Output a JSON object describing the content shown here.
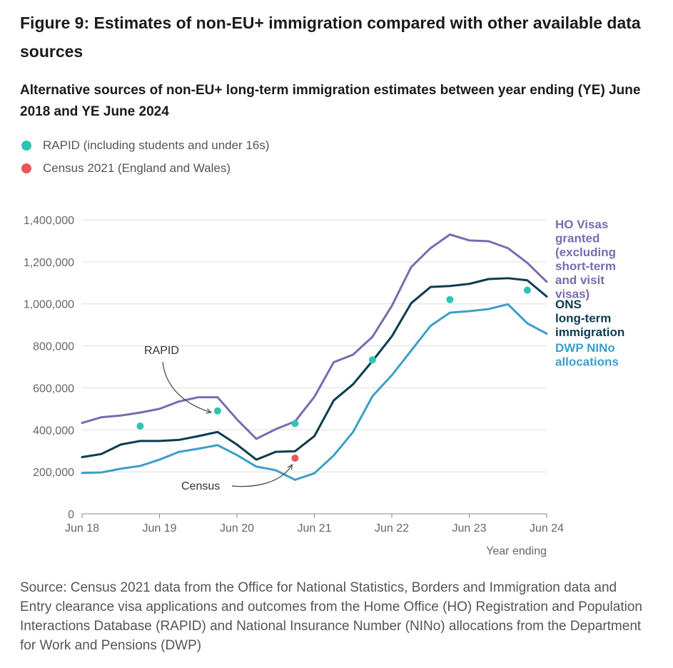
{
  "figure_title": "Figure 9: Estimates of non-EU+ immigration compared with other available data sources",
  "source_note": "Source: Census 2021 data from the Office for National Statistics, Borders and Immigration data and Entry clearance visa applications and outcomes from the Home Office (HO) Registration and Population Interactions Database (RAPID) and National Insurance Number (NINo) allocations from the Department for Work and Pensions (DWP)",
  "chart_data": {
    "type": "line",
    "title": "Alternative sources of non-EU+ long-term immigration estimates between year ending (YE) June 2018 and YE June 2024",
    "xlabel": "Year ending",
    "ylabel": "",
    "ylim": [
      0,
      1400000
    ],
    "yticks": [
      0,
      200000,
      400000,
      600000,
      800000,
      1000000,
      1200000,
      1400000
    ],
    "ytick_labels": [
      "0",
      "200,000",
      "400,000",
      "600,000",
      "800,000",
      "1,000,000",
      "1,200,000",
      "1,400,000"
    ],
    "xlim": [
      2018.5,
      2024.5
    ],
    "xticks": [
      2018.5,
      2019.5,
      2020.5,
      2021.5,
      2022.5,
      2023.5,
      2024.5
    ],
    "xtick_labels": [
      "Jun 18",
      "Jun 19",
      "Jun 20",
      "Jun 21",
      "Jun 22",
      "Jun 23",
      "Jun 24"
    ],
    "grid": true,
    "x": [
      2018.5,
      2018.75,
      2019.0,
      2019.25,
      2019.5,
      2019.75,
      2020.0,
      2020.25,
      2020.5,
      2020.75,
      2021.0,
      2021.25,
      2021.5,
      2021.75,
      2022.0,
      2022.25,
      2022.5,
      2022.75,
      2023.0,
      2023.25,
      2023.5,
      2023.75,
      2024.0,
      2024.25,
      2024.5
    ],
    "series": [
      {
        "name": "HO Visas granted (excluding short-term and visit visas)",
        "color": "#7a6bb0",
        "values": [
          433000,
          460000,
          468000,
          482000,
          500000,
          535000,
          555000,
          555000,
          450000,
          357000,
          403000,
          440000,
          557000,
          722000,
          758000,
          843000,
          990000,
          1175000,
          1265000,
          1330000,
          1302000,
          1298000,
          1265000,
          1195000,
          1105000
        ]
      },
      {
        "name": "ONS long-term immigration",
        "color": "#0b3c50",
        "values": [
          270000,
          285000,
          330000,
          347000,
          347000,
          352000,
          370000,
          390000,
          330000,
          258000,
          295000,
          298000,
          370000,
          540000,
          617000,
          728000,
          845000,
          1003000,
          1080000,
          1085000,
          1095000,
          1118000,
          1122000,
          1112000,
          1035000
        ]
      },
      {
        "name": "DWP NINo allocations",
        "color": "#3d9ec9",
        "values": [
          195000,
          197000,
          215000,
          228000,
          258000,
          295000,
          310000,
          327000,
          280000,
          225000,
          208000,
          162000,
          193000,
          278000,
          390000,
          560000,
          660000,
          777000,
          895000,
          958000,
          965000,
          975000,
          998000,
          907000,
          858000
        ]
      }
    ],
    "points": [
      {
        "name": "RAPID (including students and under 16s)",
        "color": "#2ec4b6",
        "x": [
          2019.25,
          2020.25,
          2021.25,
          2022.25,
          2023.25,
          2024.25
        ],
        "y": [
          418000,
          490000,
          430000,
          733000,
          1020000,
          1065000
        ]
      },
      {
        "name": "Census 2021 (England and Wales)",
        "color": "#e9565c",
        "x": [
          2021.25
        ],
        "y": [
          265000
        ]
      }
    ],
    "annotations": [
      {
        "text": "RAPID",
        "target_x": 2020.25,
        "target_y": 490000
      },
      {
        "text": "Census",
        "target_x": 2021.25,
        "target_y": 265000
      }
    ],
    "legend_position": "top-left"
  }
}
